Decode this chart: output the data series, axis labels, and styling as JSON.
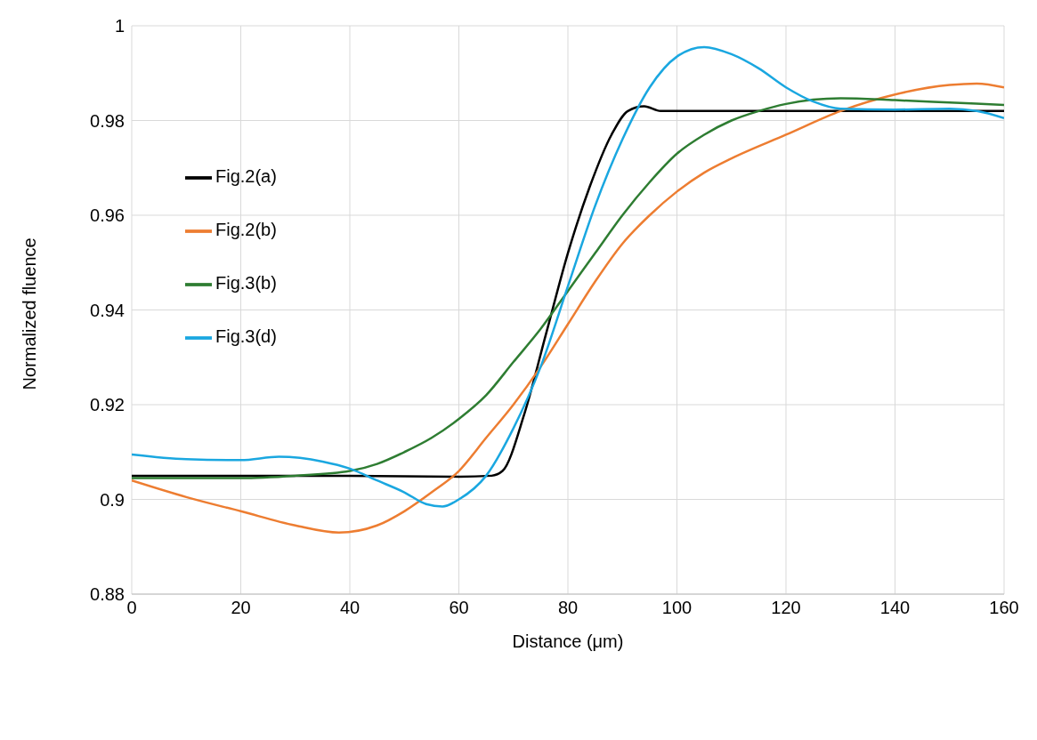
{
  "chart_data": {
    "type": "line",
    "xlabel": "Distance (μm)",
    "ylabel": "Normalized fluence",
    "xlim": [
      0,
      160
    ],
    "xticks": [
      0,
      20,
      40,
      60,
      80,
      100,
      120,
      140,
      160
    ],
    "ylim": [
      0.88,
      1
    ],
    "yticks": [
      0.88,
      0.9,
      0.92,
      0.94,
      0.96,
      0.98,
      1
    ],
    "grid": true,
    "legend": "left",
    "marker": "none",
    "line_style": "solid",
    "series": [
      {
        "name": "Fig.2(a)",
        "color": "#000000",
        "x": [
          0,
          20,
          40,
          60,
          66,
          68,
          72,
          76,
          80,
          84,
          88,
          91,
          94,
          97,
          100,
          120,
          140,
          160
        ],
        "values": [
          0.905,
          0.905,
          0.905,
          0.9048,
          0.905,
          0.906,
          0.918,
          0.935,
          0.952,
          0.966,
          0.977,
          0.982,
          0.983,
          0.982,
          0.982,
          0.982,
          0.982,
          0.982
        ]
      },
      {
        "name": "Fig.2(b)",
        "color": "#ed7d31",
        "x": [
          0,
          10,
          20,
          30,
          38,
          45,
          50,
          55,
          60,
          65,
          70,
          75,
          80,
          85,
          90,
          95,
          100,
          105,
          110,
          120,
          130,
          140,
          150,
          155,
          160
        ],
        "values": [
          0.904,
          0.9005,
          0.8975,
          0.8945,
          0.893,
          0.8945,
          0.8975,
          0.9015,
          0.906,
          0.913,
          0.92,
          0.928,
          0.937,
          0.946,
          0.954,
          0.96,
          0.965,
          0.969,
          0.972,
          0.977,
          0.982,
          0.9855,
          0.9875,
          0.9878,
          0.987
        ]
      },
      {
        "name": "Fig.3(b)",
        "color": "#2e7d32",
        "x": [
          0,
          20,
          30,
          40,
          45,
          50,
          55,
          60,
          65,
          70,
          75,
          80,
          85,
          90,
          95,
          100,
          105,
          110,
          115,
          120,
          130,
          140,
          150,
          160
        ],
        "values": [
          0.9045,
          0.9045,
          0.905,
          0.906,
          0.9075,
          0.91,
          0.913,
          0.917,
          0.922,
          0.929,
          0.936,
          0.944,
          0.952,
          0.96,
          0.967,
          0.973,
          0.977,
          0.98,
          0.982,
          0.9835,
          0.9847,
          0.9843,
          0.9838,
          0.9833
        ]
      },
      {
        "name": "Fig.3(d)",
        "color": "#1aa7e0",
        "x": [
          0,
          10,
          20,
          27,
          35,
          40,
          45,
          50,
          54,
          57,
          60,
          65,
          70,
          75,
          80,
          85,
          90,
          95,
          100,
          105,
          110,
          115,
          120,
          125,
          130,
          140,
          150,
          155,
          160
        ],
        "values": [
          0.9095,
          0.9085,
          0.9083,
          0.909,
          0.908,
          0.9065,
          0.904,
          0.9015,
          0.899,
          0.8985,
          0.9,
          0.905,
          0.915,
          0.928,
          0.945,
          0.962,
          0.976,
          0.987,
          0.9935,
          0.9955,
          0.994,
          0.991,
          0.987,
          0.984,
          0.9825,
          0.9823,
          0.9825,
          0.982,
          0.9805
        ]
      }
    ]
  }
}
